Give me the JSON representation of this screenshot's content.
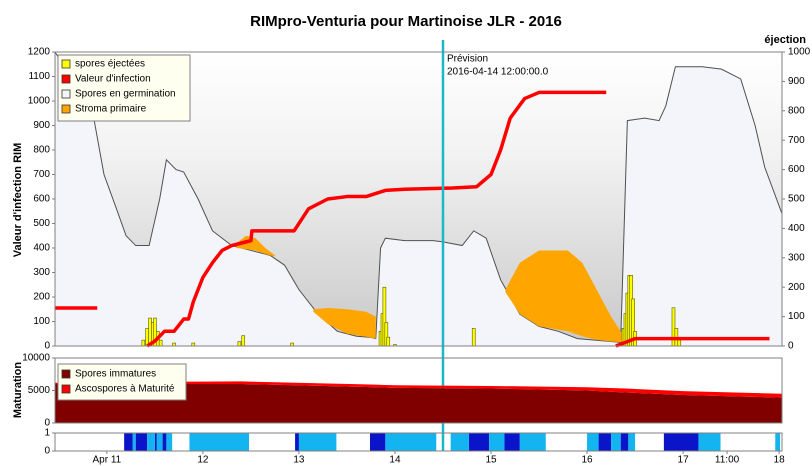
{
  "chart_data": [
    {
      "type": "line",
      "title": "RIMpro-Venturia pour  Martinoise JLR - 2016",
      "ylabel": "Valeur d'infection RIM",
      "y2label": "éjection",
      "xlim": [
        10.46,
        18.03
      ],
      "ylim": [
        0,
        1200
      ],
      "yticks": [
        0,
        100,
        200,
        300,
        400,
        500,
        600,
        700,
        800,
        900,
        1000,
        1100,
        1200
      ],
      "y2lim": [
        0,
        1000
      ],
      "y2ticks": [
        0,
        100,
        200,
        300,
        400,
        500,
        600,
        700,
        800,
        900,
        1000
      ],
      "forecast": {
        "x": 14.5,
        "label": "Prévision",
        "date": "2016-04-14 12:00:00.0",
        "color": "#1ab8c8"
      },
      "legend": "upper left",
      "series": [
        {
          "name": "spores éjectées",
          "color": "#ffff00",
          "axis": "y2",
          "type": "bar",
          "x": [
            11.38,
            11.42,
            11.45,
            11.48,
            11.5,
            11.53,
            11.56,
            11.7,
            11.9,
            12.38,
            12.42,
            12.93,
            13.85,
            13.87,
            13.89,
            13.91,
            13.93,
            14.0,
            14.82,
            16.38,
            16.4,
            16.42,
            16.44,
            16.46,
            16.48,
            16.5,
            16.9,
            16.93,
            16.96
          ],
          "values": [
            20,
            60,
            95,
            80,
            95,
            50,
            20,
            10,
            10,
            15,
            35,
            10,
            50,
            110,
            200,
            80,
            30,
            5,
            60,
            60,
            110,
            180,
            240,
            240,
            160,
            50,
            130,
            60,
            20
          ]
        },
        {
          "name": "Valeur d'infection",
          "color": "#ff0000",
          "type": "line",
          "x": [
            10.46,
            10.9,
            11.0,
            11.42,
            11.5,
            11.6,
            11.7,
            11.8,
            11.85,
            11.9,
            12.0,
            12.1,
            12.2,
            12.3,
            12.45,
            12.5,
            12.51,
            12.95,
            13.1,
            13.3,
            13.5,
            13.7,
            13.9,
            14.1,
            14.6,
            14.85,
            15.0,
            15.1,
            15.2,
            15.35,
            15.5,
            16.2,
            16.25,
            16.3,
            16.5,
            17.9
          ],
          "values": [
            155,
            155,
            null,
            0,
            20,
            60,
            60,
            110,
            110,
            180,
            280,
            340,
            390,
            410,
            425,
            430,
            470,
            470,
            560,
            600,
            610,
            610,
            635,
            640,
            645,
            650,
            700,
            800,
            930,
            1010,
            1035,
            1035,
            null,
            0,
            30,
            30
          ]
        },
        {
          "name": "Spores en germination",
          "color": "#f4f5fb",
          "line_color": "#505050",
          "type": "area",
          "x": [
            10.46,
            10.85,
            10.97,
            11.1,
            11.2,
            11.3,
            11.44,
            11.55,
            11.62,
            11.72,
            11.8,
            11.95,
            12.1,
            12.3,
            12.5,
            12.7,
            12.85,
            13.0,
            13.2,
            13.4,
            13.6,
            13.75,
            13.8,
            13.85,
            13.9,
            14.1,
            14.4,
            14.5,
            14.7,
            14.82,
            14.95,
            15.1,
            15.3,
            15.5,
            15.7,
            15.9,
            16.2,
            16.35,
            16.42,
            16.6,
            16.75,
            16.82,
            16.92,
            17.2,
            17.4,
            17.6,
            17.75,
            17.85,
            18.03
          ],
          "values": [
            1200,
            960,
            700,
            560,
            450,
            410,
            410,
            600,
            760,
            720,
            710,
            600,
            470,
            410,
            390,
            370,
            330,
            230,
            130,
            60,
            40,
            35,
            30,
            400,
            440,
            430,
            430,
            425,
            410,
            470,
            440,
            270,
            130,
            80,
            60,
            30,
            20,
            15,
            920,
            930,
            920,
            980,
            1140,
            1140,
            1130,
            1090,
            900,
            730,
            540
          ]
        },
        {
          "name": "Stroma primaire",
          "color": "#ffa500",
          "type": "band",
          "x": [
            12.35,
            12.45,
            12.55,
            12.65,
            12.75,
            null,
            13.15,
            13.3,
            13.5,
            13.7,
            13.8,
            null,
            15.15,
            15.3,
            15.5,
            15.8,
            15.95,
            16.1,
            16.25,
            16.4
          ],
          "values": [
            420,
            450,
            440,
            400,
            370,
            null,
            150,
            155,
            150,
            140,
            120,
            null,
            230,
            340,
            390,
            390,
            340,
            230,
            120,
            30
          ],
          "base": [
            400,
            395,
            390,
            375,
            365,
            null,
            140,
            90,
            50,
            38,
            30,
            null,
            220,
            130,
            80,
            60,
            40,
            25,
            18,
            15
          ]
        }
      ]
    },
    {
      "type": "area",
      "ylabel": "Maturation",
      "xlim": [
        10.46,
        18.03
      ],
      "ylim": [
        0,
        10000
      ],
      "yticks": [
        0,
        5000,
        10000
      ],
      "legend": "upper left",
      "x": [
        10.46,
        11.0,
        12.4,
        13.8,
        14.0,
        15.0,
        16.0,
        16.4,
        17.0,
        18.03
      ],
      "series": [
        {
          "name": "Spores immatures",
          "color": "#800000",
          "values": [
            6000,
            6000,
            6000,
            5500,
            5400,
            5300,
            5000,
            4700,
            4300,
            3900
          ]
        },
        {
          "name": "Ascospores à Maturité",
          "color": "#ff0000",
          "values": [
            200,
            300,
            400,
            400,
            400,
            400,
            500,
            600,
            600,
            600
          ]
        }
      ]
    },
    {
      "type": "timeline",
      "xlim": [
        10.46,
        18.03
      ],
      "ylim": [
        0,
        1
      ],
      "yticks": [
        0,
        1
      ],
      "xticks": [
        {
          "value": 11,
          "label": "Apr 11"
        },
        12,
        13,
        14,
        15,
        16,
        17,
        {
          "value": 17.458,
          "label": "11:00"
        },
        18
      ],
      "series": [
        {
          "color": "#0a14c8",
          "intervals": [
            [
              11.18,
              11.27
            ],
            [
              11.3,
              11.42
            ],
            [
              11.5,
              11.52
            ],
            [
              11.58,
              11.62
            ],
            [
              12.96,
              13.0
            ],
            [
              13.74,
              13.9
            ],
            [
              14.77,
              14.98
            ],
            [
              15.14,
              15.3
            ],
            [
              16.12,
              16.25
            ],
            [
              16.35,
              16.43
            ],
            [
              16.8,
              17.16
            ]
          ]
        },
        {
          "color": "#14b4f0",
          "intervals": [
            [
              11.27,
              11.3
            ],
            [
              11.42,
              11.5
            ],
            [
              11.52,
              11.58
            ],
            [
              11.62,
              11.68
            ],
            [
              11.86,
              12.48
            ],
            [
              13.0,
              13.39
            ],
            [
              13.9,
              14.43
            ],
            [
              14.58,
              14.77
            ],
            [
              14.98,
              15.14
            ],
            [
              15.3,
              15.57
            ],
            [
              16.0,
              16.12
            ],
            [
              16.25,
              16.35
            ],
            [
              16.43,
              16.5
            ],
            [
              17.16,
              17.39
            ],
            [
              17.96,
              18.01
            ]
          ]
        }
      ]
    }
  ]
}
